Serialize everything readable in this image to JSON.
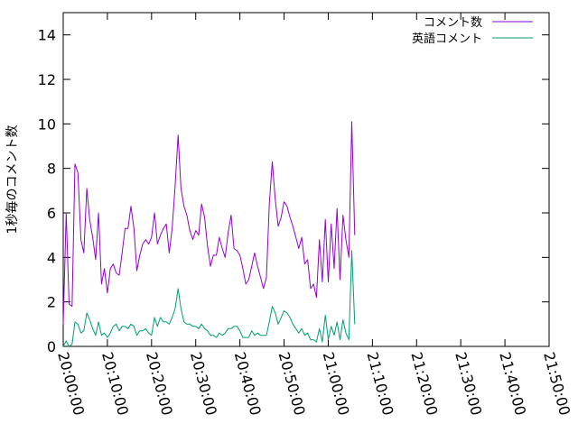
{
  "chart_data": {
    "type": "line",
    "ylabel": "1秒毎のコメント数",
    "ylim": [
      0,
      15
    ],
    "yticks": [
      "0",
      "2",
      "4",
      "6",
      "8",
      "10",
      "12",
      "14"
    ],
    "xlim": [
      "20:00:00",
      "21:50:00"
    ],
    "xticks": [
      "20:00:00",
      "20:10:00",
      "20:20:00",
      "20:30:00",
      "20:40:00",
      "20:50:00",
      "21:00:00",
      "21:10:00",
      "21:20:00",
      "21:30:00",
      "21:40:00",
      "21:50:00"
    ],
    "legend_position": "top-right",
    "grid": false,
    "series": [
      {
        "name": "コメント数",
        "color": "#9400d3",
        "points": [
          [
            "20:00:00",
            1.0
          ],
          [
            "20:00:40",
            6.0
          ],
          [
            "20:01:20",
            1.9
          ],
          [
            "20:02:00",
            1.8
          ],
          [
            "20:02:40",
            8.2
          ],
          [
            "20:03:20",
            7.8
          ],
          [
            "20:04:00",
            4.8
          ],
          [
            "20:04:40",
            4.2
          ],
          [
            "20:05:20",
            7.1
          ],
          [
            "20:06:00",
            5.7
          ],
          [
            "20:06:40",
            4.9
          ],
          [
            "20:07:20",
            3.9
          ],
          [
            "20:08:00",
            6.0
          ],
          [
            "20:08:40",
            2.8
          ],
          [
            "20:09:20",
            3.5
          ],
          [
            "20:10:00",
            2.4
          ],
          [
            "20:10:40",
            3.5
          ],
          [
            "20:11:20",
            3.7
          ],
          [
            "20:12:00",
            3.3
          ],
          [
            "20:12:40",
            3.2
          ],
          [
            "20:13:20",
            4.2
          ],
          [
            "20:14:00",
            5.3
          ],
          [
            "20:14:40",
            5.3
          ],
          [
            "20:15:20",
            6.3
          ],
          [
            "20:16:00",
            5.3
          ],
          [
            "20:16:40",
            3.4
          ],
          [
            "20:17:20",
            4.1
          ],
          [
            "20:18:00",
            4.6
          ],
          [
            "20:18:40",
            4.8
          ],
          [
            "20:19:20",
            4.6
          ],
          [
            "20:20:00",
            4.9
          ],
          [
            "20:20:40",
            6.0
          ],
          [
            "20:21:20",
            4.6
          ],
          [
            "20:22:00",
            5.0
          ],
          [
            "20:22:40",
            5.3
          ],
          [
            "20:23:20",
            5.5
          ],
          [
            "20:24:00",
            4.2
          ],
          [
            "20:24:40",
            5.3
          ],
          [
            "20:25:20",
            7.2
          ],
          [
            "20:26:00",
            9.5
          ],
          [
            "20:26:40",
            7.1
          ],
          [
            "20:27:20",
            6.3
          ],
          [
            "20:28:00",
            5.9
          ],
          [
            "20:28:40",
            5.2
          ],
          [
            "20:29:20",
            4.8
          ],
          [
            "20:30:00",
            5.2
          ],
          [
            "20:30:40",
            5.0
          ],
          [
            "20:31:20",
            6.4
          ],
          [
            "20:32:00",
            5.8
          ],
          [
            "20:32:40",
            4.5
          ],
          [
            "20:33:20",
            3.6
          ],
          [
            "20:34:00",
            4.1
          ],
          [
            "20:34:40",
            4.1
          ],
          [
            "20:35:20",
            4.9
          ],
          [
            "20:36:00",
            4.4
          ],
          [
            "20:36:40",
            4.0
          ],
          [
            "20:37:20",
            5.1
          ],
          [
            "20:38:00",
            5.9
          ],
          [
            "20:38:40",
            4.4
          ],
          [
            "20:39:20",
            4.3
          ],
          [
            "20:40:00",
            4.1
          ],
          [
            "20:40:40",
            3.5
          ],
          [
            "20:41:20",
            2.8
          ],
          [
            "20:42:00",
            3.0
          ],
          [
            "20:42:40",
            3.6
          ],
          [
            "20:43:20",
            4.2
          ],
          [
            "20:44:00",
            3.6
          ],
          [
            "20:44:40",
            3.1
          ],
          [
            "20:45:20",
            2.6
          ],
          [
            "20:46:00",
            3.1
          ],
          [
            "20:46:40",
            6.4
          ],
          [
            "20:47:20",
            8.3
          ],
          [
            "20:48:00",
            6.6
          ],
          [
            "20:48:40",
            5.4
          ],
          [
            "20:49:20",
            5.8
          ],
          [
            "20:50:00",
            6.5
          ],
          [
            "20:50:40",
            6.3
          ],
          [
            "20:51:20",
            5.8
          ],
          [
            "20:52:00",
            5.4
          ],
          [
            "20:52:40",
            4.9
          ],
          [
            "20:53:20",
            4.4
          ],
          [
            "20:54:00",
            4.9
          ],
          [
            "20:54:40",
            3.7
          ],
          [
            "20:55:20",
            3.9
          ],
          [
            "20:56:00",
            2.6
          ],
          [
            "20:56:40",
            2.8
          ],
          [
            "20:57:20",
            2.2
          ],
          [
            "20:58:00",
            4.8
          ],
          [
            "20:58:40",
            2.9
          ],
          [
            "20:59:20",
            5.7
          ],
          [
            "21:00:00",
            2.9
          ],
          [
            "21:00:40",
            5.5
          ],
          [
            "21:01:20",
            3.5
          ],
          [
            "21:02:00",
            6.2
          ],
          [
            "21:02:40",
            3.0
          ],
          [
            "21:03:20",
            5.9
          ],
          [
            "21:04:00",
            4.8
          ],
          [
            "21:04:40",
            4.0
          ],
          [
            "21:05:20",
            10.1
          ],
          [
            "21:06:00",
            5.0
          ]
        ]
      },
      {
        "name": "英語コメント",
        "color": "#009e73",
        "points": [
          [
            "20:00:00",
            0.0
          ],
          [
            "20:00:40",
            0.25
          ],
          [
            "20:01:20",
            0.0
          ],
          [
            "20:02:00",
            0.1
          ],
          [
            "20:02:40",
            1.1
          ],
          [
            "20:03:20",
            1.0
          ],
          [
            "20:04:00",
            0.6
          ],
          [
            "20:04:40",
            0.7
          ],
          [
            "20:05:20",
            1.5
          ],
          [
            "20:06:00",
            1.2
          ],
          [
            "20:06:40",
            0.8
          ],
          [
            "20:07:20",
            0.5
          ],
          [
            "20:08:00",
            1.1
          ],
          [
            "20:08:40",
            0.5
          ],
          [
            "20:09:20",
            0.6
          ],
          [
            "20:10:00",
            0.4
          ],
          [
            "20:10:40",
            0.6
          ],
          [
            "20:11:20",
            0.9
          ],
          [
            "20:12:00",
            1.0
          ],
          [
            "20:12:40",
            0.7
          ],
          [
            "20:13:20",
            0.9
          ],
          [
            "20:14:00",
            0.9
          ],
          [
            "20:14:40",
            0.8
          ],
          [
            "20:15:20",
            1.0
          ],
          [
            "20:16:00",
            0.9
          ],
          [
            "20:16:40",
            0.5
          ],
          [
            "20:17:20",
            0.7
          ],
          [
            "20:18:00",
            0.7
          ],
          [
            "20:18:40",
            0.8
          ],
          [
            "20:19:20",
            0.6
          ],
          [
            "20:20:00",
            0.5
          ],
          [
            "20:20:40",
            1.3
          ],
          [
            "20:21:20",
            0.9
          ],
          [
            "20:22:00",
            1.3
          ],
          [
            "20:22:40",
            1.1
          ],
          [
            "20:23:20",
            1.1
          ],
          [
            "20:24:00",
            1.0
          ],
          [
            "20:24:40",
            1.3
          ],
          [
            "20:25:20",
            1.7
          ],
          [
            "20:26:00",
            2.6
          ],
          [
            "20:26:40",
            1.7
          ],
          [
            "20:27:20",
            1.1
          ],
          [
            "20:28:00",
            1.0
          ],
          [
            "20:28:40",
            1.0
          ],
          [
            "20:29:20",
            0.9
          ],
          [
            "20:30:00",
            0.9
          ],
          [
            "20:30:40",
            0.8
          ],
          [
            "20:31:20",
            1.0
          ],
          [
            "20:32:00",
            0.8
          ],
          [
            "20:32:40",
            0.7
          ],
          [
            "20:33:20",
            0.5
          ],
          [
            "20:34:00",
            0.5
          ],
          [
            "20:34:40",
            0.4
          ],
          [
            "20:35:20",
            0.6
          ],
          [
            "20:36:00",
            0.5
          ],
          [
            "20:36:40",
            0.6
          ],
          [
            "20:37:20",
            0.8
          ],
          [
            "20:38:00",
            0.8
          ],
          [
            "20:38:40",
            0.9
          ],
          [
            "20:39:20",
            0.9
          ],
          [
            "20:40:00",
            0.7
          ],
          [
            "20:40:40",
            0.4
          ],
          [
            "20:41:20",
            0.4
          ],
          [
            "20:42:00",
            0.4
          ],
          [
            "20:42:40",
            0.7
          ],
          [
            "20:43:20",
            0.5
          ],
          [
            "20:44:00",
            0.6
          ],
          [
            "20:44:40",
            0.5
          ],
          [
            "20:45:20",
            0.5
          ],
          [
            "20:46:00",
            0.5
          ],
          [
            "20:46:40",
            1.1
          ],
          [
            "20:47:20",
            1.8
          ],
          [
            "20:48:00",
            1.5
          ],
          [
            "20:48:40",
            1.0
          ],
          [
            "20:49:20",
            1.3
          ],
          [
            "20:50:00",
            1.6
          ],
          [
            "20:50:40",
            1.5
          ],
          [
            "20:51:20",
            1.3
          ],
          [
            "20:52:00",
            1.0
          ],
          [
            "20:52:40",
            0.8
          ],
          [
            "20:53:20",
            0.6
          ],
          [
            "20:54:00",
            0.8
          ],
          [
            "20:54:40",
            0.5
          ],
          [
            "20:55:20",
            0.6
          ],
          [
            "20:56:00",
            0.3
          ],
          [
            "20:56:40",
            0.3
          ],
          [
            "20:57:20",
            0.2
          ],
          [
            "20:58:00",
            0.8
          ],
          [
            "20:58:40",
            0.2
          ],
          [
            "20:59:20",
            1.4
          ],
          [
            "21:00:00",
            0.3
          ],
          [
            "21:00:40",
            0.9
          ],
          [
            "21:01:20",
            0.5
          ],
          [
            "21:02:00",
            1.1
          ],
          [
            "21:02:40",
            0.3
          ],
          [
            "21:03:20",
            1.2
          ],
          [
            "21:04:00",
            0.6
          ],
          [
            "21:04:40",
            0.3
          ],
          [
            "21:05:20",
            4.3
          ],
          [
            "21:06:00",
            1.0
          ]
        ]
      }
    ]
  }
}
